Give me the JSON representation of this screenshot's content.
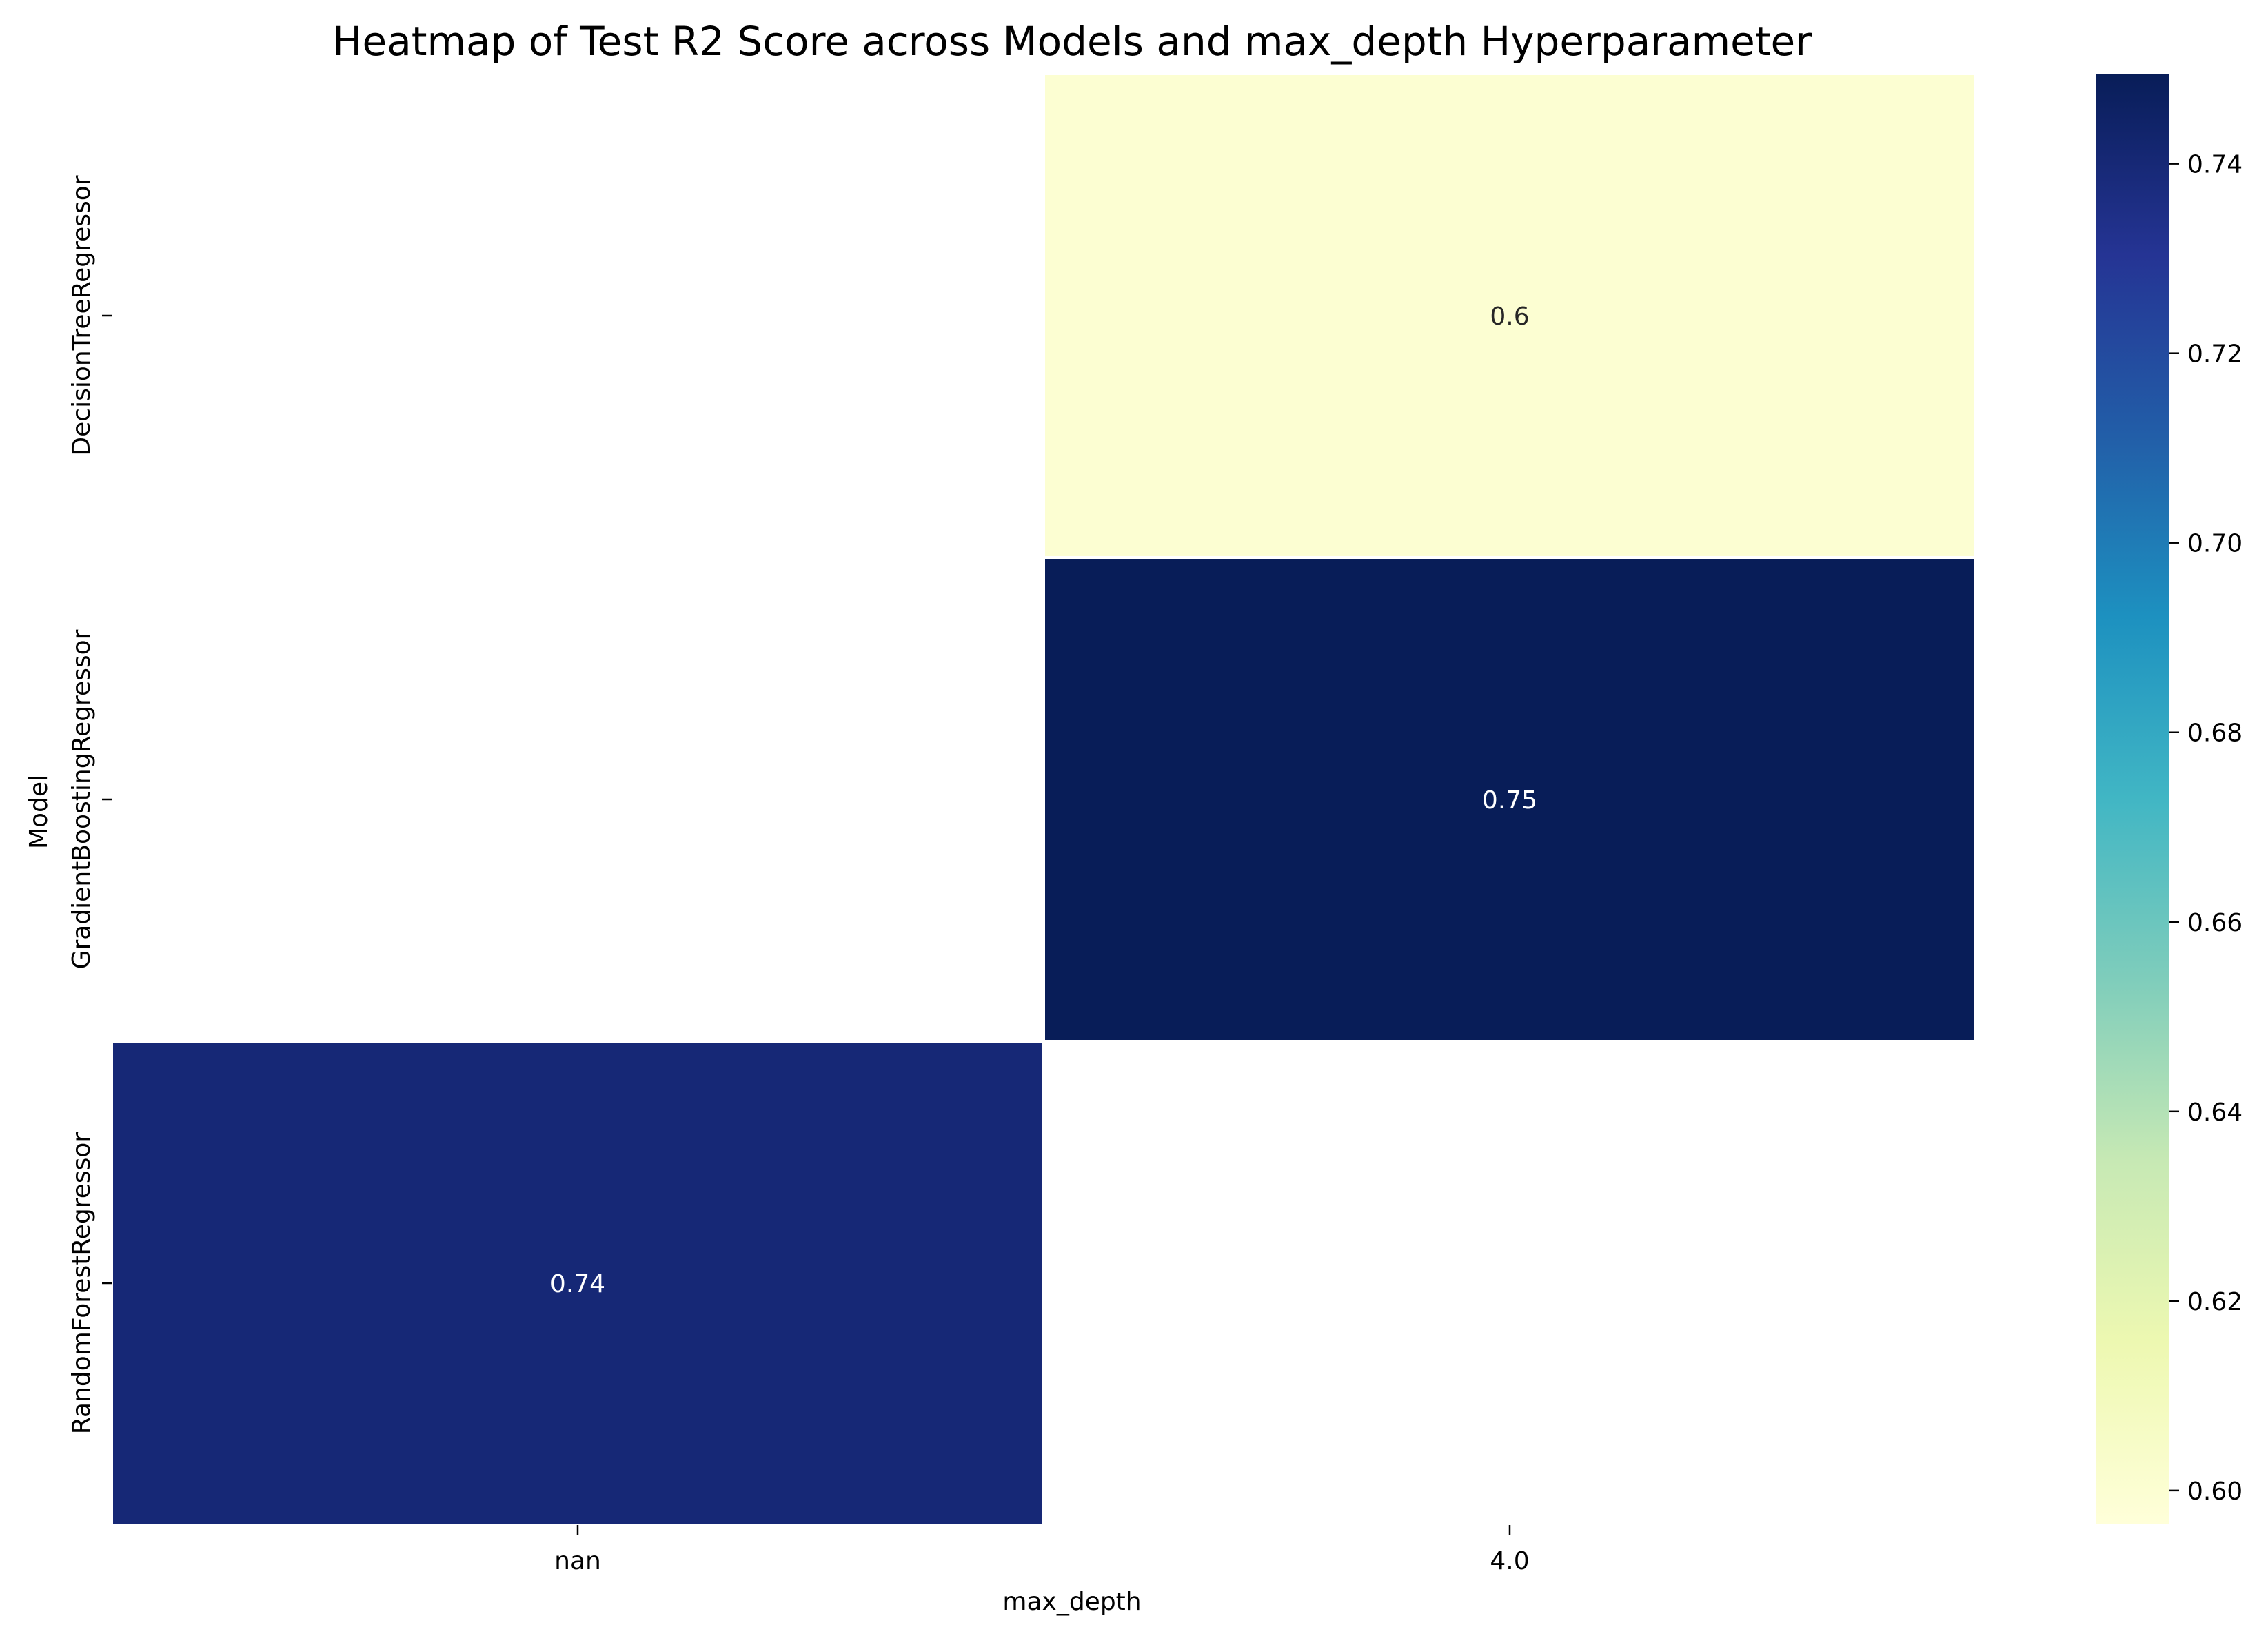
{
  "chart_data": {
    "type": "heatmap",
    "title": "Heatmap of Test R2 Score across Models and max_depth Hyperparameter",
    "xlabel": "max_depth",
    "ylabel": "Model",
    "x_categories": [
      "nan",
      "4.0"
    ],
    "y_categories": [
      "DecisionTreeRegressor",
      "GradientBoostingRegressor",
      "RandomForestRegressor"
    ],
    "values": [
      [
        null,
        0.6
      ],
      [
        null,
        0.75
      ],
      [
        0.74,
        null
      ]
    ],
    "annotations": [
      [
        "",
        "0.6"
      ],
      [
        "",
        "0.75"
      ],
      [
        "0.74",
        ""
      ]
    ],
    "colormap": "YlGnBu",
    "colorbar": {
      "min": 0.5965,
      "max": 0.7495,
      "ticks": [
        0.6,
        0.62,
        0.64,
        0.66,
        0.68,
        0.7,
        0.72,
        0.74
      ],
      "tick_labels": [
        "0.60",
        "0.62",
        "0.64",
        "0.66",
        "0.68",
        "0.70",
        "0.72",
        "0.74"
      ]
    },
    "grid": false,
    "cell_separator_color": "#ffffff",
    "missing_color": "#ffffff"
  }
}
